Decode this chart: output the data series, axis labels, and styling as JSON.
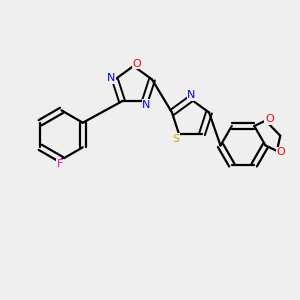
{
  "background_color": "#efefef",
  "bond_color": "#000000",
  "atom_colors": {
    "N": "#0000ff",
    "O": "#ff0000",
    "S": "#ccaa00",
    "F": "#ff00cc",
    "C": "#000000"
  },
  "figsize": [
    3.0,
    3.0
  ],
  "dpi": 100
}
